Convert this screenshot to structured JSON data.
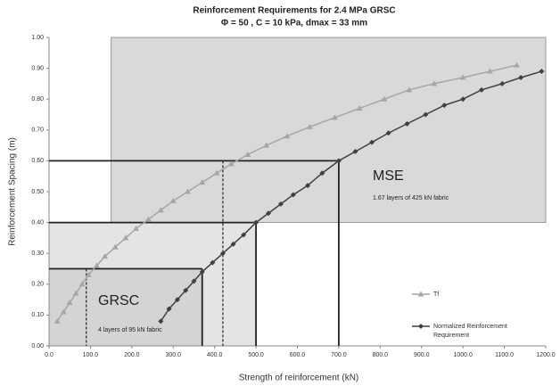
{
  "chart_data": {
    "type": "line",
    "title": "Reinforcement Requirements for 2.4 MPa  GRSC",
    "subtitle": "Φ = 50 ,  C = 10 kPa, dmax = 33 mm",
    "x_label": "Strength of reinforcement (kN)",
    "y_label": "Reinforcement Spacing (m)",
    "xlim": [
      0,
      1200
    ],
    "ylim": [
      0,
      1
    ],
    "xticks": [
      {
        "value": 0,
        "label": "0.0"
      },
      {
        "value": 100,
        "label": "100.0"
      },
      {
        "value": 200,
        "label": "200.0"
      },
      {
        "value": 300,
        "label": "300.0"
      },
      {
        "value": 400,
        "label": "400.0"
      },
      {
        "value": 500,
        "label": "500.0"
      },
      {
        "value": 600,
        "label": "600.0"
      },
      {
        "value": 700,
        "label": "700.0"
      },
      {
        "value": 800,
        "label": "800.0"
      },
      {
        "value": 900,
        "label": "900.0"
      },
      {
        "value": 1000,
        "label": "1000.0"
      },
      {
        "value": 1100,
        "label": "1100.0"
      },
      {
        "value": 1200,
        "label": "1200.0"
      }
    ],
    "yticks": [
      {
        "value": 0,
        "label": "0.00"
      },
      {
        "value": 0.1,
        "label": "0.10"
      },
      {
        "value": 0.2,
        "label": "0.20"
      },
      {
        "value": 0.3,
        "label": "0.30"
      },
      {
        "value": 0.4,
        "label": "0.40"
      },
      {
        "value": 0.5,
        "label": "0.50"
      },
      {
        "value": 0.6,
        "label": "0.60"
      },
      {
        "value": 0.7,
        "label": "0.70"
      },
      {
        "value": 0.8,
        "label": "0.80"
      },
      {
        "value": 0.9,
        "label": "0.90"
      },
      {
        "value": 1,
        "label": "1.00"
      }
    ],
    "series": [
      {
        "name": "Tf",
        "color": "#a6a6a6",
        "marker": "triangle",
        "x": [
          20,
          35,
          50,
          65,
          80,
          95,
          115,
          135,
          160,
          185,
          210,
          240,
          270,
          300,
          335,
          370,
          405,
          440,
          480,
          525,
          575,
          630,
          690,
          750,
          810,
          870,
          930,
          1000,
          1065,
          1130
        ],
        "values": [
          0.08,
          0.11,
          0.14,
          0.17,
          0.2,
          0.23,
          0.26,
          0.29,
          0.32,
          0.35,
          0.38,
          0.41,
          0.44,
          0.47,
          0.5,
          0.53,
          0.56,
          0.59,
          0.62,
          0.65,
          0.68,
          0.71,
          0.74,
          0.77,
          0.8,
          0.83,
          0.85,
          0.87,
          0.89,
          0.91
        ]
      },
      {
        "name": "Normalized Reinforcement Requirement",
        "color": "#404040",
        "marker": "diamond",
        "x": [
          270,
          290,
          310,
          330,
          350,
          370,
          395,
          420,
          445,
          470,
          500,
          530,
          560,
          590,
          625,
          660,
          700,
          740,
          780,
          820,
          865,
          910,
          955,
          1000,
          1045,
          1095,
          1140,
          1190
        ],
        "values": [
          0.08,
          0.12,
          0.15,
          0.18,
          0.21,
          0.24,
          0.27,
          0.3,
          0.33,
          0.36,
          0.4,
          0.43,
          0.46,
          0.49,
          0.52,
          0.56,
          0.6,
          0.63,
          0.66,
          0.69,
          0.72,
          0.75,
          0.78,
          0.8,
          0.83,
          0.85,
          0.87,
          0.89
        ]
      }
    ],
    "regions": [
      {
        "x": [
          0,
          500
        ],
        "y": [
          0,
          0.4
        ],
        "color": "#e4e4e4"
      },
      {
        "x": [
          150,
          1200
        ],
        "y": [
          0.4,
          1
        ],
        "color": "#d9d9d9"
      },
      {
        "x": [
          0,
          370
        ],
        "y": [
          0,
          0.25
        ],
        "color": "#d4d4d4"
      }
    ],
    "guides": [
      {
        "x": 700,
        "y": 0.6,
        "style": "solid"
      },
      {
        "x": 500,
        "y": 0.4,
        "style": "solid"
      },
      {
        "x": 370,
        "y": 0.25,
        "style": "solid"
      },
      {
        "x": 420,
        "y": 0.6,
        "style": "dashed"
      },
      {
        "x": 90,
        "y": 0.25,
        "style": "dashed"
      }
    ],
    "annotations": [
      "MSE",
      "1.67 layers of 425 kN fabric",
      "GRSC",
      "4 layers of 95 kN fabric"
    ],
    "grid": false,
    "legend": "lower right"
  }
}
